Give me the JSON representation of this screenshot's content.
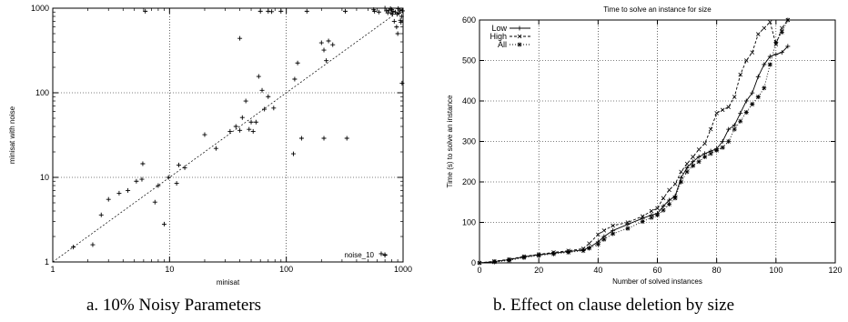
{
  "figure": {
    "caption_a": "a. 10% Noisy Parameters",
    "caption_b": "b. Effect on clause deletion by size"
  },
  "chart_data": [
    {
      "type": "scatter",
      "title": "",
      "xlabel": "minisat",
      "ylabel": "minisat with noise",
      "xscale": "log",
      "yscale": "log",
      "xlim": [
        1,
        1000
      ],
      "ylim": [
        1,
        1000
      ],
      "xticks": [
        "1",
        "10",
        "100",
        "1000"
      ],
      "yticks": [
        "1",
        "10",
        "100",
        "1000"
      ],
      "grid": true,
      "reference_line": "y = x",
      "legend": {
        "position": "bottom-right",
        "label": "noise_10"
      },
      "series": [
        {
          "name": "noise_10",
          "points": [
            [
              1.5,
              1.5
            ],
            [
              2.2,
              1.6
            ],
            [
              2.6,
              3.6
            ],
            [
              3.0,
              5.5
            ],
            [
              3.7,
              6.5
            ],
            [
              4.4,
              7.0
            ],
            [
              5.2,
              9.0
            ],
            [
              5.8,
              9.5
            ],
            [
              5.9,
              14.5
            ],
            [
              7.5,
              5.1
            ],
            [
              8.0,
              8.0
            ],
            [
              9.0,
              2.8
            ],
            [
              9.8,
              10.0
            ],
            [
              11.5,
              8.5
            ],
            [
              12.0,
              14.0
            ],
            [
              13.5,
              13.0
            ],
            [
              20,
              32
            ],
            [
              25,
              22
            ],
            [
              33,
              35
            ],
            [
              37,
              40
            ],
            [
              40,
              36
            ],
            [
              40,
              440
            ],
            [
              42,
              51
            ],
            [
              45,
              80
            ],
            [
              48,
              37
            ],
            [
              50,
              45
            ],
            [
              52,
              35
            ],
            [
              55,
              45
            ],
            [
              58,
              156
            ],
            [
              62,
              107
            ],
            [
              65,
              64
            ],
            [
              70,
              90
            ],
            [
              78,
              66
            ],
            [
              90,
              920
            ],
            [
              115,
              19
            ],
            [
              118,
              145
            ],
            [
              125,
              225
            ],
            [
              135,
              29
            ],
            [
              210,
              29
            ],
            [
              330,
              29
            ],
            [
              60,
              920
            ],
            [
              70,
              920
            ],
            [
              75,
              910
            ],
            [
              150,
              920
            ],
            [
              200,
              390
            ],
            [
              210,
              320
            ],
            [
              220,
              240
            ],
            [
              230,
              410
            ],
            [
              250,
              370
            ],
            [
              320,
              920
            ],
            [
              570,
              920
            ],
            [
              6.2,
              920
            ],
            [
              560,
              960
            ],
            [
              620,
              900
            ],
            [
              700,
              1000
            ],
            [
              720,
              930
            ],
            [
              740,
              880
            ],
            [
              760,
              950
            ],
            [
              780,
              990
            ],
            [
              790,
              880
            ],
            [
              800,
              960
            ],
            [
              810,
              850
            ],
            [
              820,
              920
            ],
            [
              840,
              700
            ],
            [
              860,
              900
            ],
            [
              880,
              600
            ],
            [
              890,
              850
            ],
            [
              900,
              500
            ],
            [
              910,
              990
            ],
            [
              920,
              870
            ],
            [
              940,
              950
            ],
            [
              950,
              720
            ],
            [
              960,
              680
            ],
            [
              970,
              800
            ],
            [
              980,
              130
            ],
            [
              990,
              930
            ],
            [
              700,
              1.2
            ],
            [
              650,
              1.25
            ]
          ]
        }
      ]
    },
    {
      "type": "line",
      "title": "Time to solve an instance for size",
      "xlabel": "Number of solved instances",
      "ylabel": "Time (s) to solve an instance",
      "xlim": [
        0,
        120
      ],
      "ylim": [
        0,
        600
      ],
      "xticks": [
        "0",
        "20",
        "40",
        "60",
        "80",
        "100",
        "120"
      ],
      "yticks": [
        "0",
        "100",
        "200",
        "300",
        "400",
        "500",
        "600"
      ],
      "grid": true,
      "legend": {
        "position": "top-left"
      },
      "series": [
        {
          "name": "Low",
          "x": [
            0,
            5,
            10,
            15,
            20,
            25,
            30,
            35,
            37,
            40,
            42,
            45,
            50,
            55,
            58,
            60,
            62,
            64,
            66,
            68,
            70,
            72,
            74,
            76,
            78,
            80,
            82,
            84,
            86,
            88,
            90,
            92,
            94,
            96,
            98,
            100,
            102,
            104
          ],
          "y": [
            0,
            3,
            8,
            15,
            20,
            24,
            28,
            32,
            38,
            52,
            65,
            80,
            95,
            110,
            118,
            122,
            140,
            155,
            165,
            210,
            235,
            250,
            262,
            270,
            276,
            282,
            300,
            330,
            340,
            370,
            400,
            420,
            460,
            490,
            510,
            515,
            520,
            535
          ]
        },
        {
          "name": "High",
          "x": [
            0,
            5,
            10,
            15,
            20,
            25,
            30,
            35,
            37,
            40,
            42,
            45,
            50,
            55,
            58,
            60,
            62,
            64,
            66,
            68,
            70,
            72,
            74,
            76,
            78,
            80,
            82,
            84,
            86,
            88,
            90,
            92,
            94,
            96,
            98,
            100,
            102,
            104
          ],
          "y": [
            0,
            4,
            9,
            16,
            21,
            26,
            30,
            35,
            48,
            70,
            80,
            92,
            100,
            115,
            128,
            135,
            160,
            180,
            195,
            225,
            245,
            262,
            280,
            295,
            330,
            370,
            378,
            385,
            410,
            465,
            500,
            520,
            565,
            580,
            595,
            540,
            580,
            600
          ]
        },
        {
          "name": "All",
          "x": [
            0,
            5,
            10,
            15,
            20,
            25,
            30,
            35,
            37,
            40,
            42,
            45,
            50,
            55,
            58,
            60,
            62,
            64,
            66,
            68,
            70,
            72,
            74,
            76,
            78,
            80,
            82,
            84,
            86,
            88,
            90,
            92,
            94,
            96,
            98,
            100,
            102,
            104
          ],
          "y": [
            0,
            2,
            6,
            13,
            18,
            22,
            26,
            30,
            36,
            46,
            58,
            72,
            85,
            102,
            112,
            118,
            130,
            145,
            160,
            200,
            225,
            240,
            250,
            262,
            270,
            278,
            285,
            300,
            330,
            350,
            372,
            392,
            410,
            432,
            490,
            545,
            570,
            600
          ]
        }
      ]
    }
  ]
}
